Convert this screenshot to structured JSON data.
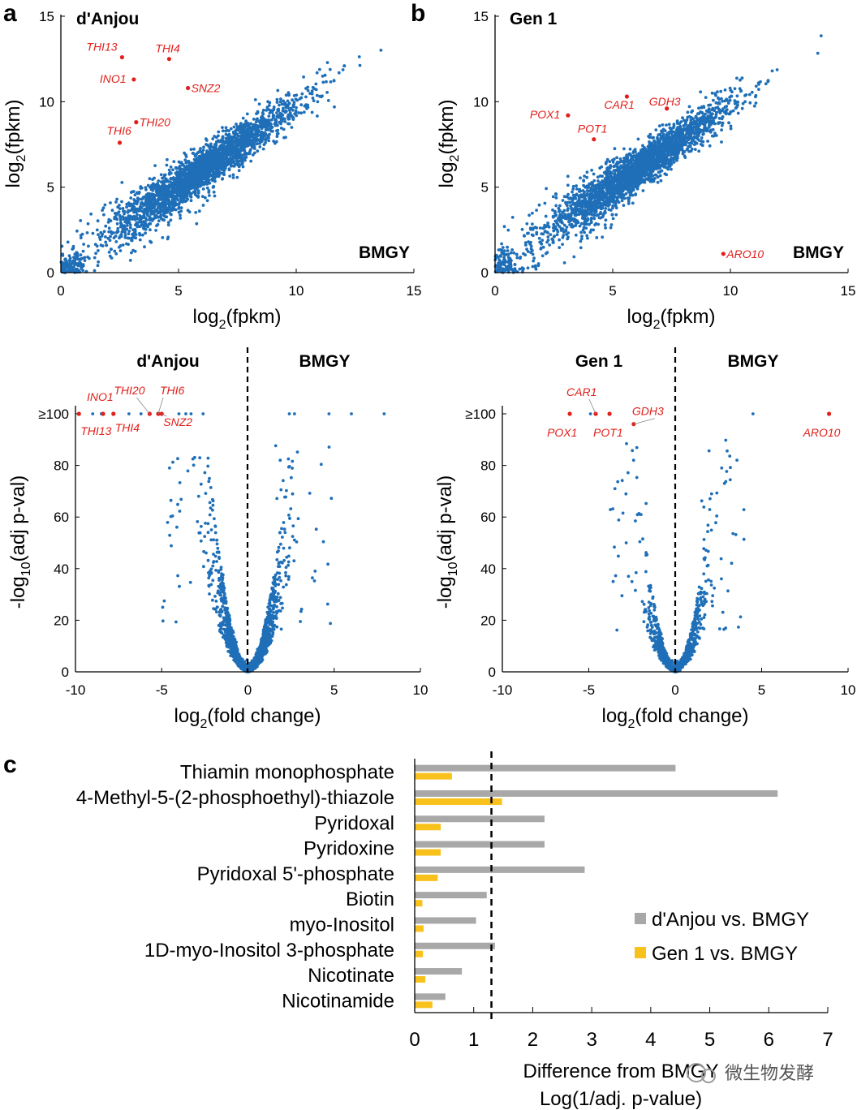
{
  "chart_data": [
    {
      "panel": "a",
      "type": "scatter",
      "title": "d'Anjou",
      "corner_label": "BMGY",
      "xlabel": "log2(fpkm)",
      "ylabel": "log2(fpkm)",
      "xlim": [
        0,
        15
      ],
      "ylim": [
        0,
        15
      ],
      "xticks": [
        "0",
        "5",
        "10",
        "15"
      ],
      "yticks": [
        "0",
        "5",
        "10",
        "15"
      ],
      "points_series_color": "#1f6fb8",
      "highlight_color": "#e0201b",
      "highlighted_genes": [
        {
          "gene": "THI13",
          "x": 2.6,
          "y": 12.6
        },
        {
          "gene": "THI4",
          "x": 4.6,
          "y": 12.5
        },
        {
          "gene": "INO1",
          "x": 3.1,
          "y": 11.3
        },
        {
          "gene": "SNZ2",
          "x": 5.4,
          "y": 10.8
        },
        {
          "gene": "THI20",
          "x": 3.2,
          "y": 8.8
        },
        {
          "gene": "THI6",
          "x": 2.5,
          "y": 7.6
        }
      ]
    },
    {
      "panel": "b",
      "type": "scatter",
      "title": "Gen 1",
      "corner_label": "BMGY",
      "xlabel": "log2(fpkm)",
      "ylabel": "log2(fpkm)",
      "xlim": [
        0,
        15
      ],
      "ylim": [
        0,
        15
      ],
      "xticks": [
        "0",
        "5",
        "10",
        "15"
      ],
      "yticks": [
        "0",
        "5",
        "10",
        "15"
      ],
      "points_series_color": "#1f6fb8",
      "highlight_color": "#e0201b",
      "highlighted_genes": [
        {
          "gene": "CAR1",
          "x": 5.6,
          "y": 10.3
        },
        {
          "gene": "GDH3",
          "x": 7.3,
          "y": 9.6
        },
        {
          "gene": "POX1",
          "x": 3.1,
          "y": 9.2
        },
        {
          "gene": "POT1",
          "x": 4.2,
          "y": 7.8
        },
        {
          "gene": "ARO10",
          "x": 9.7,
          "y": 1.1
        }
      ]
    },
    {
      "panel": "a-volcano",
      "type": "scatter",
      "left_label": "d'Anjou",
      "right_label": "BMGY",
      "xlabel": "log2(fold change)",
      "ylabel": "-log10(adj p-val)",
      "xlim": [
        -10,
        10
      ],
      "ylim": [
        0,
        100
      ],
      "xticks": [
        "-10",
        "-5",
        "0",
        "5",
        "10"
      ],
      "yticks": [
        "0",
        "20",
        "40",
        "60",
        "80",
        "≥100"
      ],
      "highlighted_genes": [
        {
          "gene": "THI13",
          "x": -9.8,
          "y": 100
        },
        {
          "gene": "INO1",
          "x": -8.4,
          "y": 100
        },
        {
          "gene": "THI4",
          "x": -7.8,
          "y": 100
        },
        {
          "gene": "THI20",
          "x": -5.7,
          "y": 100
        },
        {
          "gene": "THI6",
          "x": -5.2,
          "y": 100
        },
        {
          "gene": "SNZ2",
          "x": -5.0,
          "y": 100
        }
      ],
      "saturated_points_x": [
        -9.0,
        -8.5,
        -6.9,
        -6.2,
        -5.7,
        -4.0,
        -3.6,
        -3.3,
        -2.6,
        2.4,
        2.7,
        4.7,
        6.0,
        7.9
      ]
    },
    {
      "panel": "b-volcano",
      "type": "scatter",
      "left_label": "Gen 1",
      "right_label": "BMGY",
      "xlabel": "log2(fold change)",
      "ylabel": "-log10(adj p-val)",
      "xlim": [
        -10,
        10
      ],
      "ylim": [
        0,
        100
      ],
      "xticks": [
        "-10",
        "-5",
        "0",
        "5",
        "10"
      ],
      "yticks": [
        "0",
        "20",
        "40",
        "60",
        "80",
        "≥100"
      ],
      "highlighted_genes": [
        {
          "gene": "POX1",
          "x": -6.1,
          "y": 100
        },
        {
          "gene": "CAR1",
          "x": -4.6,
          "y": 100
        },
        {
          "gene": "POT1",
          "x": -3.8,
          "y": 100
        },
        {
          "gene": "GDH3",
          "x": -2.4,
          "y": 96
        },
        {
          "gene": "ARO10",
          "x": 8.9,
          "y": 100
        }
      ],
      "saturated_points_x": [
        -4.9,
        4.5
      ]
    },
    {
      "panel": "c",
      "type": "bar",
      "orientation": "horizontal",
      "categories": [
        "Thiamin monophosphate",
        "4-Methyl-5-(2-phosphoethyl)-thiazole",
        "Pyridoxal",
        "Pyridoxine",
        "Pyridoxal 5'-phosphate",
        "Biotin",
        "myo-Inositol",
        "1D-myo-Inositol 3-phosphate",
        "Nicotinate",
        "Nicotinamide"
      ],
      "series": [
        {
          "name": "d'Anjou vs. BMGY",
          "color": "#a8a8a8",
          "values": [
            4.42,
            6.15,
            2.2,
            2.2,
            2.88,
            1.22,
            1.04,
            1.36,
            0.8,
            0.52
          ]
        },
        {
          "name": "Gen 1 vs. BMGY",
          "color": "#f8c11b",
          "values": [
            0.63,
            1.48,
            0.44,
            0.44,
            0.39,
            0.13,
            0.15,
            0.14,
            0.18,
            0.3
          ]
        }
      ],
      "threshold": 1.3,
      "xlim": [
        0,
        7
      ],
      "xticks": [
        "0",
        "1",
        "2",
        "3",
        "4",
        "5",
        "6",
        "7"
      ],
      "xlabel_line1": "Difference from BMGY",
      "xlabel_line2": "Log(1/adj. p-value)",
      "legend_position": "right"
    }
  ],
  "watermark": "微生物发酵"
}
